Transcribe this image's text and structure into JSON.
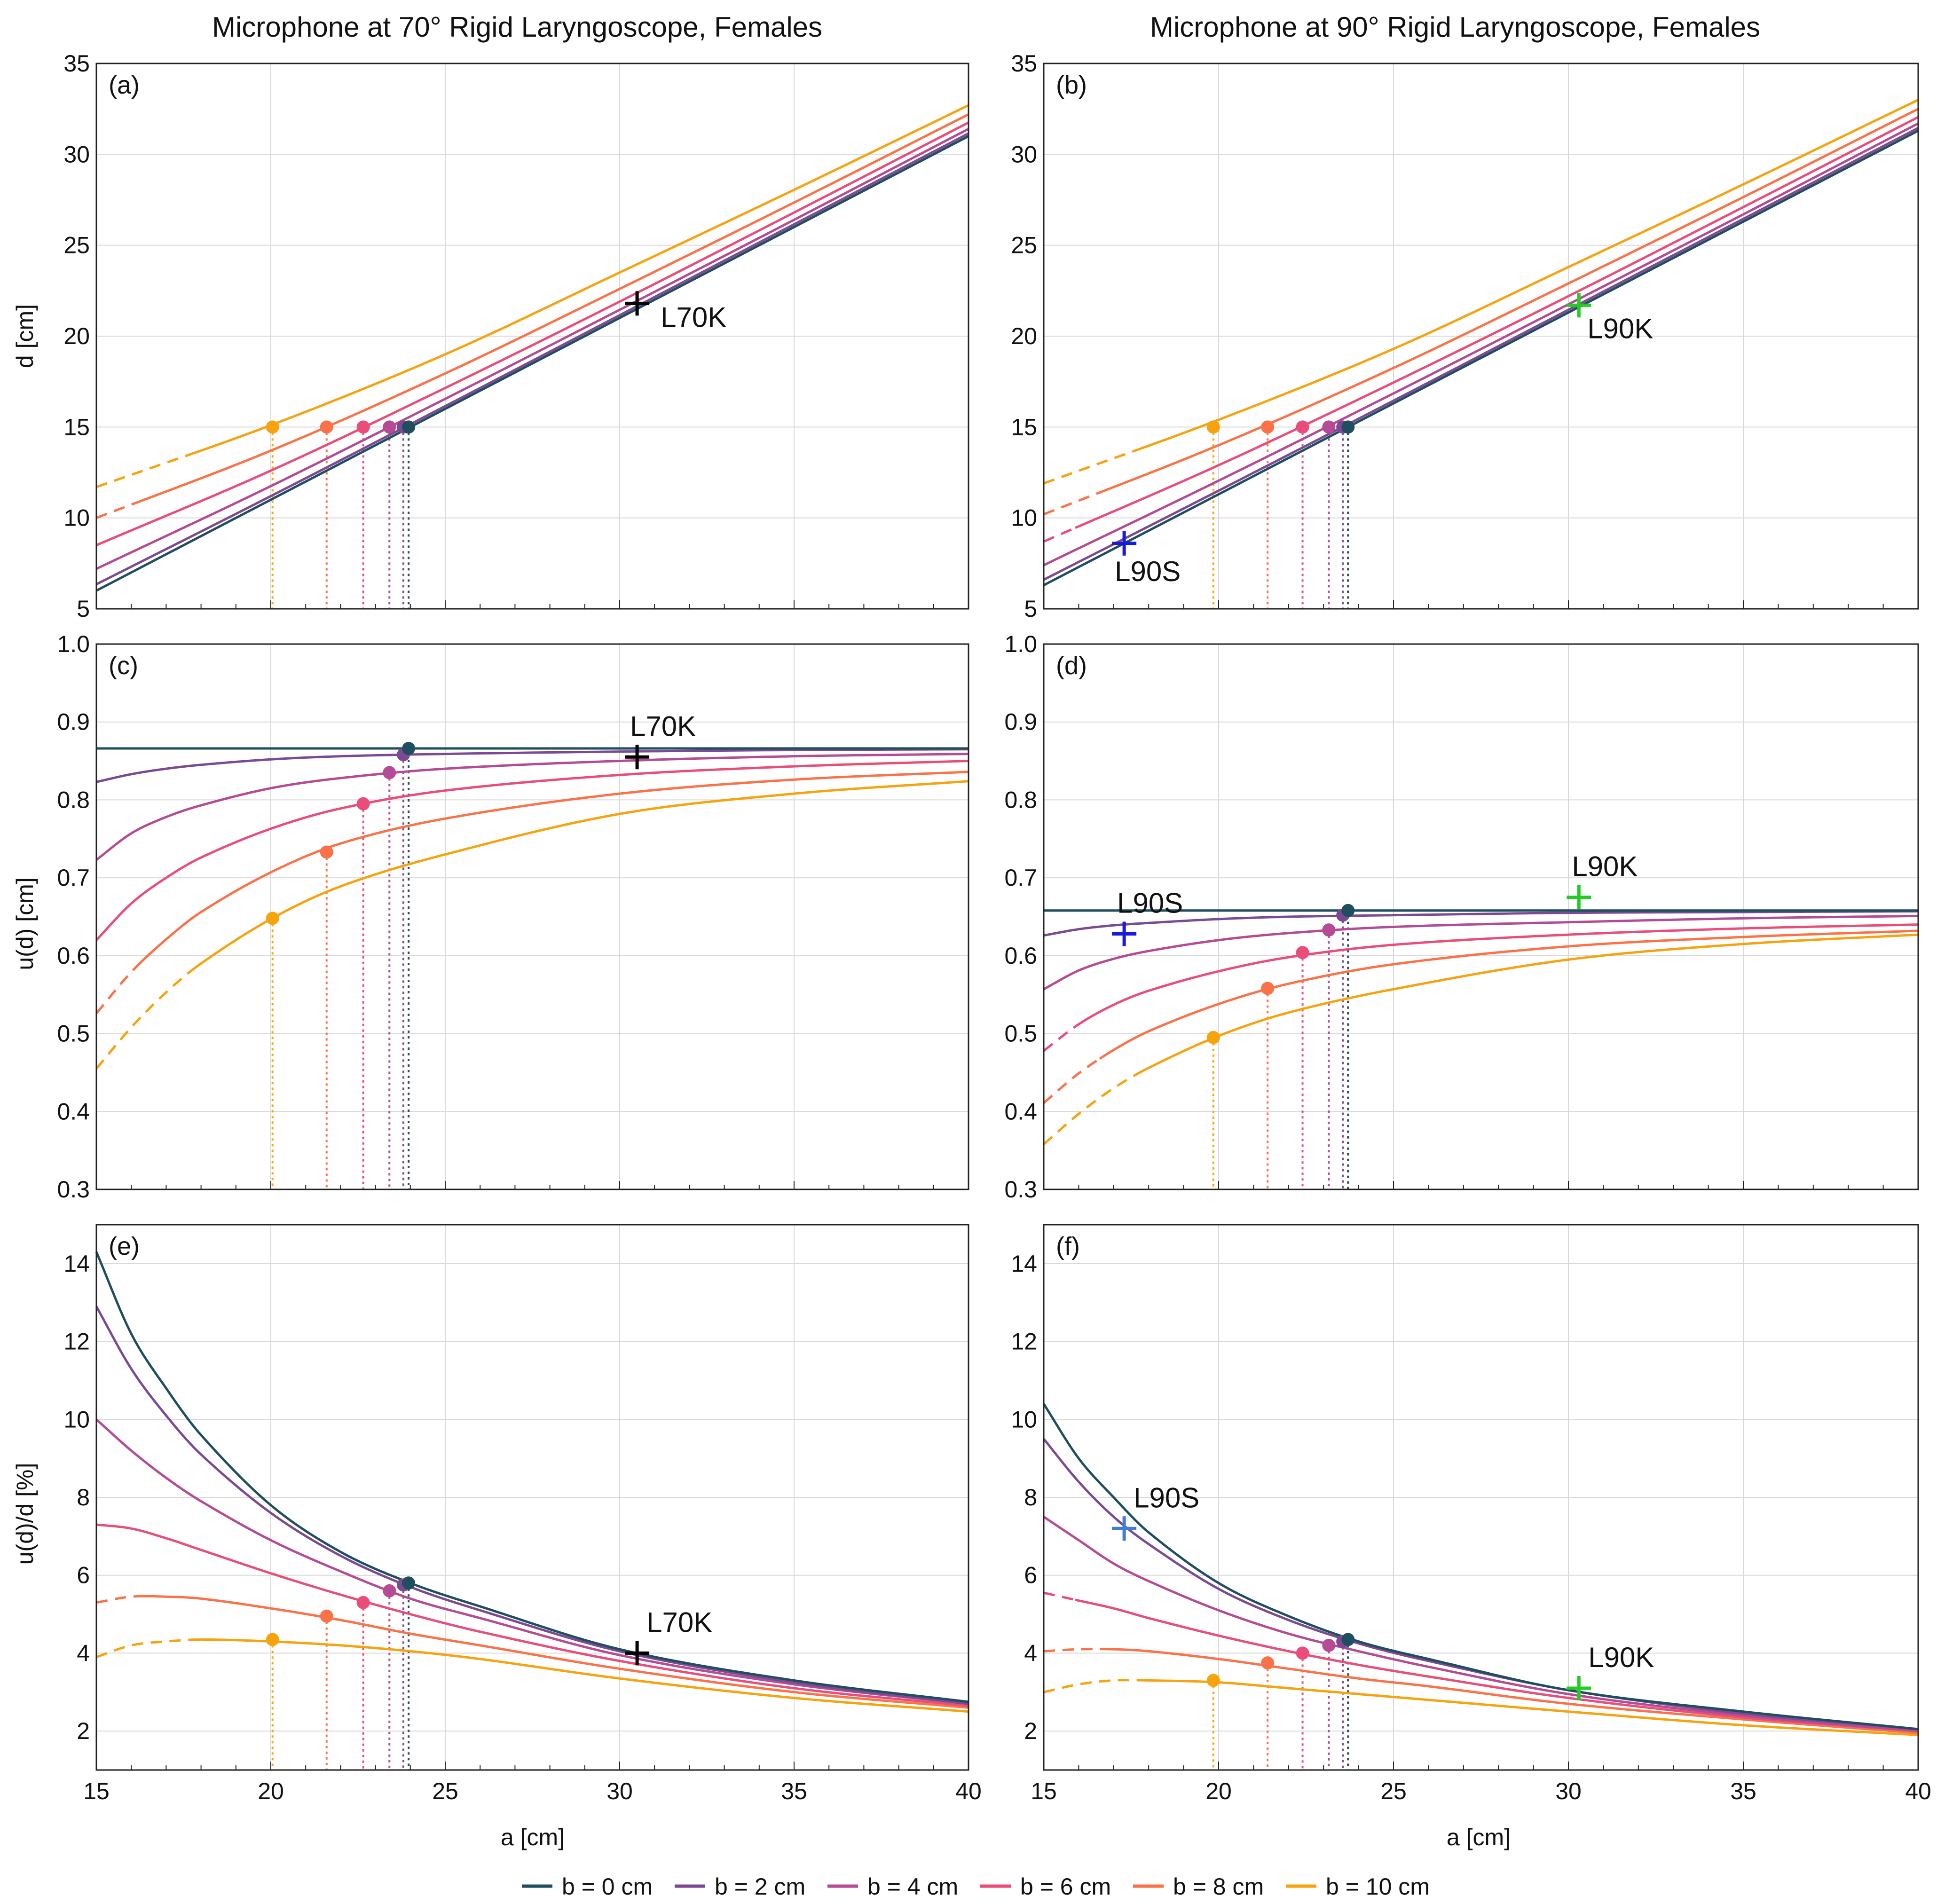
{
  "figure": {
    "titles": [
      "Microphone at 70° Rigid Laryngoscope, Females",
      "Microphone at 90° Rigid Laryngoscope, Females"
    ],
    "xlabel": "a [cm]",
    "ylabels": [
      "d [cm]",
      "u(d) [cm]",
      "u(d)/d [%]"
    ],
    "legend": [
      {
        "label": "b = 0 cm",
        "color": "#1f4e5f"
      },
      {
        "label": "b = 2 cm",
        "color": "#7b4a93"
      },
      {
        "label": "b = 4 cm",
        "color": "#b44b94"
      },
      {
        "label": "b = 6 cm",
        "color": "#ea4d7a"
      },
      {
        "label": "b = 8 cm",
        "color": "#fb7248"
      },
      {
        "label": "b = 10 cm",
        "color": "#f7a30e"
      }
    ],
    "marker_colors": {
      "black": "#000000",
      "blue": "#1a1adc",
      "green": "#22cc22",
      "lightblue": "#3f7fd8"
    }
  },
  "chart_data": [
    {
      "id": "a",
      "label": "(a)",
      "type": "line",
      "xlabel": "a [cm]",
      "ylabel": "d [cm]",
      "xlim": [
        15,
        40
      ],
      "ylim": [
        5,
        35
      ],
      "xticks": [
        15,
        20,
        25,
        30,
        35,
        40
      ],
      "yticks": [
        5,
        10,
        15,
        20,
        25,
        30,
        35
      ],
      "x": [
        15,
        20,
        25,
        30,
        35,
        40
      ],
      "series": [
        {
          "name": "b = 0 cm",
          "values": [
            6.0,
            11.0,
            16.0,
            21.0,
            26.0,
            31.0
          ],
          "dash_until": null
        },
        {
          "name": "b = 2 cm",
          "values": [
            6.35,
            11.2,
            16.15,
            21.15,
            26.15,
            31.15
          ],
          "dash_until": null
        },
        {
          "name": "b = 4 cm",
          "values": [
            7.2,
            11.75,
            16.55,
            21.45,
            26.4,
            31.4
          ],
          "dash_until": null
        },
        {
          "name": "b = 6 cm",
          "values": [
            8.5,
            12.6,
            17.15,
            21.9,
            26.8,
            31.75
          ],
          "dash_until": null
        },
        {
          "name": "b = 8 cm",
          "values": [
            10.0,
            13.7,
            17.95,
            22.6,
            27.35,
            32.2
          ],
          "dash_until": 16.2
        },
        {
          "name": "b = 10 cm",
          "values": [
            11.7,
            15.1,
            19.0,
            23.5,
            28.05,
            32.7
          ],
          "dash_until": 17.8
        }
      ],
      "dots": [
        {
          "series": "b = 0 cm",
          "x": 23.95,
          "y": 15.0
        },
        {
          "series": "b = 2 cm",
          "x": 23.8,
          "y": 15.0
        },
        {
          "series": "b = 4 cm",
          "x": 23.4,
          "y": 15.0
        },
        {
          "series": "b = 6 cm",
          "x": 22.65,
          "y": 15.0
        },
        {
          "series": "b = 8 cm",
          "x": 21.6,
          "y": 15.0
        },
        {
          "series": "b = 10 cm",
          "x": 20.05,
          "y": 15.0
        }
      ],
      "markers": [
        {
          "label": "L70K",
          "x": 30.5,
          "y": 21.8,
          "color": "black",
          "label_pos": "right"
        }
      ]
    },
    {
      "id": "b",
      "label": "(b)",
      "type": "line",
      "xlabel": "a [cm]",
      "ylabel": "",
      "xlim": [
        15,
        40
      ],
      "ylim": [
        5,
        35
      ],
      "xticks": [
        15,
        20,
        25,
        30,
        35,
        40
      ],
      "yticks": [
        5,
        10,
        15,
        20,
        25,
        30,
        35
      ],
      "x": [
        15,
        20,
        25,
        30,
        35,
        40
      ],
      "series": [
        {
          "name": "b = 0 cm",
          "values": [
            6.3,
            11.3,
            16.3,
            21.3,
            26.3,
            31.3
          ],
          "dash_until": null
        },
        {
          "name": "b = 2 cm",
          "values": [
            6.6,
            11.5,
            16.45,
            21.45,
            26.45,
            31.45
          ],
          "dash_until": null
        },
        {
          "name": "b = 4 cm",
          "values": [
            7.4,
            12.05,
            16.85,
            21.75,
            26.7,
            31.7
          ],
          "dash_until": null
        },
        {
          "name": "b = 6 cm",
          "values": [
            8.7,
            12.9,
            17.45,
            22.2,
            27.1,
            32.05
          ],
          "dash_until": 15.9
        },
        {
          "name": "b = 8 cm",
          "values": [
            10.2,
            14.0,
            18.25,
            22.9,
            27.65,
            32.5
          ],
          "dash_until": 16.6
        },
        {
          "name": "b = 10 cm",
          "values": [
            11.9,
            15.4,
            19.3,
            23.8,
            28.35,
            33.0
          ],
          "dash_until": 17.7
        }
      ],
      "dots": [
        {
          "series": "b = 0 cm",
          "x": 23.7,
          "y": 15.0
        },
        {
          "series": "b = 2 cm",
          "x": 23.55,
          "y": 15.0
        },
        {
          "series": "b = 4 cm",
          "x": 23.15,
          "y": 15.0
        },
        {
          "series": "b = 6 cm",
          "x": 22.4,
          "y": 15.0
        },
        {
          "series": "b = 8 cm",
          "x": 21.4,
          "y": 15.0
        },
        {
          "series": "b = 10 cm",
          "x": 19.85,
          "y": 15.0
        }
      ],
      "markers": [
        {
          "label": "L90K",
          "x": 30.3,
          "y": 21.7,
          "color": "green",
          "label_pos": "below-right"
        },
        {
          "label": "L90S",
          "x": 17.3,
          "y": 8.6,
          "color": "blue",
          "label_pos": "below"
        }
      ]
    },
    {
      "id": "c",
      "label": "(c)",
      "type": "line",
      "xlabel": "a [cm]",
      "ylabel": "u(d) [cm]",
      "xlim": [
        15,
        40
      ],
      "ylim": [
        0.3,
        1.0
      ],
      "xticks": [
        15,
        20,
        25,
        30,
        35,
        40
      ],
      "yticks": [
        0.3,
        0.4,
        0.5,
        0.6,
        0.7,
        0.8,
        0.9,
        1.0
      ],
      "x": [
        15,
        16,
        17,
        18,
        20,
        22,
        25,
        30,
        35,
        40
      ],
      "series": [
        {
          "name": "b = 0 cm",
          "values": [
            0.866,
            0.866,
            0.866,
            0.866,
            0.866,
            0.866,
            0.866,
            0.866,
            0.866,
            0.866
          ],
          "dash_until": null
        },
        {
          "name": "b = 2 cm",
          "values": [
            0.823,
            0.833,
            0.84,
            0.845,
            0.852,
            0.856,
            0.859,
            0.862,
            0.864,
            0.865
          ],
          "dash_until": null
        },
        {
          "name": "b = 4 cm",
          "values": [
            0.723,
            0.757,
            0.778,
            0.793,
            0.815,
            0.828,
            0.84,
            0.85,
            0.856,
            0.859
          ],
          "dash_until": null
        },
        {
          "name": "b = 6 cm",
          "values": [
            0.62,
            0.667,
            0.7,
            0.726,
            0.763,
            0.789,
            0.812,
            0.832,
            0.843,
            0.85
          ],
          "dash_until": null
        },
        {
          "name": "b = 8 cm",
          "values": [
            0.526,
            0.579,
            0.621,
            0.656,
            0.707,
            0.744,
            0.776,
            0.808,
            0.826,
            0.836
          ],
          "dash_until": 16.2
        },
        {
          "name": "b = 10 cm",
          "values": [
            0.455,
            0.508,
            0.553,
            0.59,
            0.647,
            0.689,
            0.73,
            0.782,
            0.808,
            0.824
          ],
          "dash_until": 17.8
        }
      ],
      "dots": [
        {
          "series": "b = 0 cm",
          "x": 23.95,
          "y": 0.866
        },
        {
          "series": "b = 2 cm",
          "x": 23.8,
          "y": 0.858
        },
        {
          "series": "b = 4 cm",
          "x": 23.4,
          "y": 0.835
        },
        {
          "series": "b = 6 cm",
          "x": 22.65,
          "y": 0.795
        },
        {
          "series": "b = 8 cm",
          "x": 21.6,
          "y": 0.733
        },
        {
          "series": "b = 10 cm",
          "x": 20.05,
          "y": 0.648
        }
      ],
      "markers": [
        {
          "label": "L70K",
          "x": 30.5,
          "y": 0.855,
          "color": "black",
          "label_pos": "above"
        }
      ]
    },
    {
      "id": "d",
      "label": "(d)",
      "type": "line",
      "xlabel": "a [cm]",
      "ylabel": "",
      "xlim": [
        15,
        40
      ],
      "ylim": [
        0.3,
        1.0
      ],
      "xticks": [
        15,
        20,
        25,
        30,
        35,
        40
      ],
      "yticks": [
        0.3,
        0.4,
        0.5,
        0.6,
        0.7,
        0.8,
        0.9,
        1.0
      ],
      "x": [
        15,
        16,
        17,
        18,
        20,
        22,
        25,
        30,
        35,
        40
      ],
      "series": [
        {
          "name": "b = 0 cm",
          "values": [
            0.658,
            0.658,
            0.658,
            0.658,
            0.658,
            0.658,
            0.658,
            0.658,
            0.658,
            0.658
          ],
          "dash_until": null
        },
        {
          "name": "b = 2 cm",
          "values": [
            0.626,
            0.634,
            0.639,
            0.642,
            0.647,
            0.65,
            0.652,
            0.655,
            0.656,
            0.657
          ],
          "dash_until": null
        },
        {
          "name": "b = 4 cm",
          "values": [
            0.557,
            0.581,
            0.596,
            0.606,
            0.62,
            0.629,
            0.637,
            0.643,
            0.648,
            0.651
          ],
          "dash_until": null
        },
        {
          "name": "b = 6 cm",
          "values": [
            0.478,
            0.512,
            0.537,
            0.555,
            0.58,
            0.598,
            0.614,
            0.627,
            0.635,
            0.64
          ],
          "dash_until": 15.9
        },
        {
          "name": "b = 8 cm",
          "values": [
            0.411,
            0.449,
            0.479,
            0.503,
            0.538,
            0.564,
            0.589,
            0.612,
            0.624,
            0.632
          ],
          "dash_until": 16.6
        },
        {
          "name": "b = 10 cm",
          "values": [
            0.358,
            0.397,
            0.43,
            0.456,
            0.497,
            0.527,
            0.557,
            0.595,
            0.615,
            0.627
          ],
          "dash_until": 17.7
        }
      ],
      "dots": [
        {
          "series": "b = 0 cm",
          "x": 23.7,
          "y": 0.658
        },
        {
          "series": "b = 2 cm",
          "x": 23.55,
          "y": 0.652
        },
        {
          "series": "b = 4 cm",
          "x": 23.15,
          "y": 0.633
        },
        {
          "series": "b = 6 cm",
          "x": 22.4,
          "y": 0.604
        },
        {
          "series": "b = 8 cm",
          "x": 21.4,
          "y": 0.558
        },
        {
          "series": "b = 10 cm",
          "x": 19.85,
          "y": 0.495
        }
      ],
      "markers": [
        {
          "label": "L90K",
          "x": 30.3,
          "y": 0.675,
          "color": "green",
          "label_pos": "above"
        },
        {
          "label": "L90S",
          "x": 17.3,
          "y": 0.628,
          "color": "blue",
          "label_pos": "above"
        }
      ]
    },
    {
      "id": "e",
      "label": "(e)",
      "type": "line",
      "xlabel": "a [cm]",
      "ylabel": "u(d)/d [%]",
      "xlim": [
        15,
        40
      ],
      "ylim": [
        1,
        15
      ],
      "xticks": [
        15,
        20,
        25,
        30,
        35,
        40
      ],
      "yticks": [
        2,
        4,
        6,
        8,
        10,
        12,
        14
      ],
      "x": [
        15,
        16,
        17,
        18,
        20,
        22,
        24,
        26,
        30,
        35,
        40
      ],
      "series": [
        {
          "name": "b = 0 cm",
          "values": [
            14.3,
            12.2,
            10.8,
            9.6,
            7.8,
            6.6,
            5.8,
            5.2,
            4.1,
            3.3,
            2.75
          ],
          "dash_until": null
        },
        {
          "name": "b = 2 cm",
          "values": [
            12.9,
            11.3,
            10.1,
            9.1,
            7.6,
            6.5,
            5.7,
            5.1,
            4.05,
            3.25,
            2.7
          ],
          "dash_until": null
        },
        {
          "name": "b = 4 cm",
          "values": [
            10.0,
            9.2,
            8.5,
            7.9,
            6.9,
            6.1,
            5.4,
            4.9,
            3.95,
            3.2,
            2.7
          ],
          "dash_until": null
        },
        {
          "name": "b = 6 cm",
          "values": [
            7.3,
            7.2,
            6.95,
            6.65,
            6.05,
            5.5,
            5.0,
            4.55,
            3.8,
            3.1,
            2.65
          ],
          "dash_until": null
        },
        {
          "name": "b = 8 cm",
          "values": [
            5.3,
            5.45,
            5.45,
            5.4,
            5.15,
            4.85,
            4.5,
            4.2,
            3.6,
            3.0,
            2.6
          ],
          "dash_until": 16.2
        },
        {
          "name": "b = 10 cm",
          "values": [
            3.9,
            4.2,
            4.3,
            4.35,
            4.3,
            4.2,
            4.05,
            3.85,
            3.35,
            2.85,
            2.5
          ],
          "dash_until": 17.8
        }
      ],
      "dots": [
        {
          "series": "b = 0 cm",
          "x": 23.95,
          "y": 5.8
        },
        {
          "series": "b = 2 cm",
          "x": 23.8,
          "y": 5.75
        },
        {
          "series": "b = 4 cm",
          "x": 23.4,
          "y": 5.6
        },
        {
          "series": "b = 6 cm",
          "x": 22.65,
          "y": 5.3
        },
        {
          "series": "b = 8 cm",
          "x": 21.6,
          "y": 4.95
        },
        {
          "series": "b = 10 cm",
          "x": 20.05,
          "y": 4.35
        }
      ],
      "markers": [
        {
          "label": "L70K",
          "x": 30.5,
          "y": 4.0,
          "color": "black",
          "label_pos": "above-right"
        }
      ]
    },
    {
      "id": "f",
      "label": "(f)",
      "type": "line",
      "xlabel": "a [cm]",
      "ylabel": "",
      "xlim": [
        15,
        40
      ],
      "ylim": [
        1,
        15
      ],
      "xticks": [
        15,
        20,
        25,
        30,
        35,
        40
      ],
      "yticks": [
        2,
        4,
        6,
        8,
        10,
        12,
        14
      ],
      "x": [
        15,
        16,
        17,
        18,
        20,
        22,
        24,
        26,
        30,
        35,
        40
      ],
      "series": [
        {
          "name": "b = 0 cm",
          "values": [
            10.4,
            9.0,
            8.0,
            7.1,
            5.8,
            4.95,
            4.3,
            3.85,
            3.05,
            2.5,
            2.05
          ],
          "dash_until": null
        },
        {
          "name": "b = 2 cm",
          "values": [
            9.5,
            8.4,
            7.5,
            6.8,
            5.65,
            4.85,
            4.25,
            3.8,
            3.05,
            2.45,
            2.05
          ],
          "dash_until": null
        },
        {
          "name": "b = 4 cm",
          "values": [
            7.5,
            6.9,
            6.3,
            5.85,
            5.1,
            4.5,
            4.05,
            3.65,
            2.95,
            2.4,
            2.0
          ],
          "dash_until": null
        },
        {
          "name": "b = 6 cm",
          "values": [
            5.55,
            5.35,
            5.15,
            4.9,
            4.45,
            4.05,
            3.7,
            3.4,
            2.85,
            2.35,
            2.0
          ],
          "dash_until": 15.9
        },
        {
          "name": "b = 8 cm",
          "values": [
            4.05,
            4.1,
            4.1,
            4.05,
            3.85,
            3.6,
            3.35,
            3.15,
            2.7,
            2.3,
            1.95
          ],
          "dash_until": 16.6
        },
        {
          "name": "b = 10 cm",
          "values": [
            3.0,
            3.2,
            3.3,
            3.3,
            3.25,
            3.1,
            2.95,
            2.8,
            2.5,
            2.15,
            1.9
          ],
          "dash_until": 17.7
        }
      ],
      "dots": [
        {
          "series": "b = 0 cm",
          "x": 23.7,
          "y": 4.35
        },
        {
          "series": "b = 2 cm",
          "x": 23.55,
          "y": 4.3
        },
        {
          "series": "b = 4 cm",
          "x": 23.15,
          "y": 4.2
        },
        {
          "series": "b = 6 cm",
          "x": 22.4,
          "y": 4.0
        },
        {
          "series": "b = 8 cm",
          "x": 21.4,
          "y": 3.75
        },
        {
          "series": "b = 10 cm",
          "x": 19.85,
          "y": 3.3
        }
      ],
      "markers": [
        {
          "label": "L90K",
          "x": 30.3,
          "y": 3.1,
          "color": "green",
          "label_pos": "above-right"
        },
        {
          "label": "L90S",
          "x": 17.3,
          "y": 7.2,
          "color": "lightblue",
          "label_pos": "above-right"
        }
      ]
    }
  ]
}
